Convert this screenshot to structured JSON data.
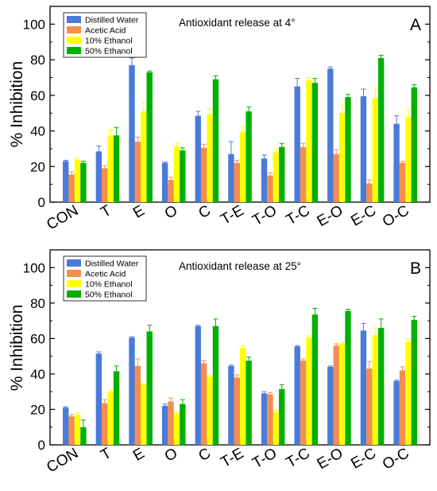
{
  "chart_data": [
    {
      "type": "bar",
      "panel_letter": "A",
      "annotation": "Antioxidant release at 4°",
      "ylabel": "% Inhibition",
      "xlabel": "",
      "ylim": [
        0,
        110
      ],
      "yticks": [
        0,
        20,
        40,
        60,
        80,
        100
      ],
      "grid": false,
      "legend_position": "top-left",
      "categories": [
        "CON",
        "T",
        "E",
        "O",
        "C",
        "T-E",
        "T-O",
        "T-C",
        "E-O",
        "E-C",
        "O-C"
      ],
      "series": [
        {
          "name": "Distilled Water",
          "color": "#4a7bd8",
          "values": [
            23,
            28.5,
            77,
            22,
            48.5,
            27,
            24.5,
            65,
            75,
            59.5,
            44
          ],
          "errors": [
            0.5,
            3,
            4,
            0.5,
            2.5,
            7,
            2,
            4.5,
            1,
            4,
            4.5
          ]
        },
        {
          "name": "Acetic Acid",
          "color": "#f58d4f",
          "values": [
            15.5,
            19,
            34,
            12.5,
            30.5,
            22,
            15,
            31,
            27,
            10.5,
            22
          ],
          "errors": [
            1.5,
            1.5,
            2.5,
            1.5,
            2,
            1.5,
            1.5,
            2,
            2.5,
            2,
            1
          ]
        },
        {
          "name": "10% Ethanol",
          "color": "#ffff00",
          "values": [
            24,
            37,
            51,
            31,
            49.5,
            39.5,
            28,
            68.5,
            50,
            58.5,
            48
          ],
          "errors": [
            1,
            3.5,
            5,
            2,
            3,
            3,
            2,
            1.5,
            5,
            5,
            4
          ]
        },
        {
          "name": "50% Ethanol",
          "color": "#00b000",
          "values": [
            22,
            37.5,
            73,
            29,
            69,
            51,
            31,
            67,
            59,
            81,
            64.5
          ],
          "errors": [
            1,
            4.5,
            0.7,
            1.5,
            2,
            2.5,
            2,
            2.5,
            1.5,
            1.5,
            1.5
          ]
        }
      ]
    },
    {
      "type": "bar",
      "panel_letter": "B",
      "annotation": "Antioxidant release at 25°",
      "ylabel": "% Inhibition",
      "xlabel": "",
      "ylim": [
        0,
        110
      ],
      "yticks": [
        0,
        20,
        40,
        60,
        80,
        100
      ],
      "grid": false,
      "legend_position": "top-left",
      "categories": [
        "CON",
        "T",
        "E",
        "O",
        "C",
        "T-E",
        "T-O",
        "T-C",
        "E-O",
        "E-C",
        "O-C"
      ],
      "series": [
        {
          "name": "Distilled Water",
          "color": "#4a7bd8",
          "values": [
            21,
            51.5,
            60.5,
            22,
            67,
            44.5,
            29,
            55.5,
            44,
            64.5,
            36
          ],
          "errors": [
            0.5,
            1,
            0.5,
            1,
            0.5,
            0.5,
            1,
            0.5,
            0.5,
            4,
            0.5
          ]
        },
        {
          "name": "Acetic Acid",
          "color": "#f58d4f",
          "values": [
            16,
            23.5,
            44.5,
            24.5,
            46,
            38,
            28.5,
            47.5,
            56,
            43,
            42
          ],
          "errors": [
            1,
            2,
            4,
            2,
            1.5,
            1.5,
            1,
            1,
            1,
            4,
            2
          ]
        },
        {
          "name": "10% Ethanol",
          "color": "#ffff00",
          "values": [
            17,
            30,
            34,
            17.5,
            38.5,
            54.5,
            18.5,
            60.5,
            57,
            62,
            58
          ],
          "errors": [
            1,
            1,
            0.5,
            1,
            1,
            1.5,
            1,
            1,
            0.5,
            4,
            1.5
          ]
        },
        {
          "name": "50% Ethanol",
          "color": "#00b000",
          "values": [
            10,
            41.5,
            64,
            23,
            67,
            47.5,
            31.5,
            73.5,
            75.5,
            66,
            70.5
          ],
          "errors": [
            4,
            3,
            3.5,
            2.5,
            4,
            2,
            2.5,
            3.5,
            1,
            5,
            2
          ]
        }
      ]
    }
  ]
}
